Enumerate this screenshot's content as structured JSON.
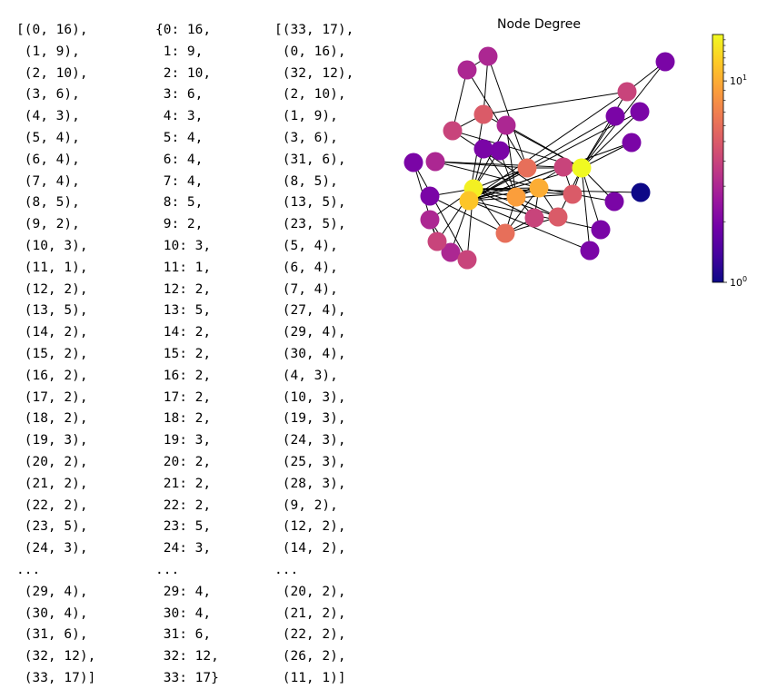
{
  "output_list_lines": [
    "[(0, 16),",
    " (1, 9),",
    " (2, 10),",
    " (3, 6),",
    " (4, 3),",
    " (5, 4),",
    " (6, 4),",
    " (7, 4),",
    " (8, 5),",
    " (9, 2),",
    " (10, 3),",
    " (11, 1),",
    " (12, 2),",
    " (13, 5),",
    " (14, 2),",
    " (15, 2),",
    " (16, 2),",
    " (17, 2),",
    " (18, 2),",
    " (19, 3),",
    " (20, 2),",
    " (21, 2),",
    " (22, 2),",
    " (23, 5),",
    " (24, 3),",
    "...",
    " (29, 4),",
    " (30, 4),",
    " (31, 6),",
    " (32, 12),",
    " (33, 17)]"
  ],
  "output_dict_lines": [
    "{0: 16,",
    " 1: 9,",
    " 2: 10,",
    " 3: 6,",
    " 4: 3,",
    " 5: 4,",
    " 6: 4,",
    " 7: 4,",
    " 8: 5,",
    " 9: 2,",
    " 10: 3,",
    " 11: 1,",
    " 12: 2,",
    " 13: 5,",
    " 14: 2,",
    " 15: 2,",
    " 16: 2,",
    " 17: 2,",
    " 18: 2,",
    " 19: 3,",
    " 20: 2,",
    " 21: 2,",
    " 22: 2,",
    " 23: 5,",
    " 24: 3,",
    "...",
    " 29: 4,",
    " 30: 4,",
    " 31: 6,",
    " 32: 12,",
    " 33: 17}"
  ],
  "output_sorted_lines": [
    "[(33, 17),",
    " (0, 16),",
    " (32, 12),",
    " (2, 10),",
    " (1, 9),",
    " (3, 6),",
    " (31, 6),",
    " (8, 5),",
    " (13, 5),",
    " (23, 5),",
    " (5, 4),",
    " (6, 4),",
    " (7, 4),",
    " (27, 4),",
    " (29, 4),",
    " (30, 4),",
    " (4, 3),",
    " (10, 3),",
    " (19, 3),",
    " (24, 3),",
    " (25, 3),",
    " (28, 3),",
    " (9, 2),",
    " (12, 2),",
    " (14, 2),",
    "...",
    " (20, 2),",
    " (21, 2),",
    " (22, 2),",
    " (26, 2),",
    " (11, 1)]"
  ],
  "figure": {
    "title": "Node Degree",
    "colorbar": {
      "colormap": "plasma",
      "scale": "log",
      "range": [
        1,
        17
      ],
      "ticks": [
        {
          "value": 1,
          "base": "10",
          "exp": "0"
        },
        {
          "value": 10,
          "base": "10",
          "exp": "1"
        }
      ]
    },
    "colormap_stops": [
      "#0d0887",
      "#46039f",
      "#7201a8",
      "#9c179e",
      "#bd3786",
      "#d8576b",
      "#ed7953",
      "#fb9f3a",
      "#fdca26",
      "#f0f921"
    ],
    "nodes": [
      {
        "id": 0,
        "degree": 16
      },
      {
        "id": 1,
        "degree": 9
      },
      {
        "id": 2,
        "degree": 10
      },
      {
        "id": 3,
        "degree": 6
      },
      {
        "id": 4,
        "degree": 3
      },
      {
        "id": 5,
        "degree": 4
      },
      {
        "id": 6,
        "degree": 4
      },
      {
        "id": 7,
        "degree": 4
      },
      {
        "id": 8,
        "degree": 5
      },
      {
        "id": 9,
        "degree": 2
      },
      {
        "id": 10,
        "degree": 3
      },
      {
        "id": 11,
        "degree": 1
      },
      {
        "id": 12,
        "degree": 2
      },
      {
        "id": 13,
        "degree": 5
      },
      {
        "id": 14,
        "degree": 2
      },
      {
        "id": 15,
        "degree": 2
      },
      {
        "id": 16,
        "degree": 2
      },
      {
        "id": 17,
        "degree": 2
      },
      {
        "id": 18,
        "degree": 2
      },
      {
        "id": 19,
        "degree": 3
      },
      {
        "id": 20,
        "degree": 2
      },
      {
        "id": 21,
        "degree": 2
      },
      {
        "id": 22,
        "degree": 2
      },
      {
        "id": 23,
        "degree": 5
      },
      {
        "id": 24,
        "degree": 3
      },
      {
        "id": 25,
        "degree": 3
      },
      {
        "id": 26,
        "degree": 2
      },
      {
        "id": 27,
        "degree": 4
      },
      {
        "id": 28,
        "degree": 3
      },
      {
        "id": 29,
        "degree": 4
      },
      {
        "id": 30,
        "degree": 4
      },
      {
        "id": 31,
        "degree": 6
      },
      {
        "id": 32,
        "degree": 12
      },
      {
        "id": 33,
        "degree": 17
      }
    ],
    "edges": [
      [
        0,
        1
      ],
      [
        0,
        2
      ],
      [
        0,
        3
      ],
      [
        0,
        4
      ],
      [
        0,
        5
      ],
      [
        0,
        6
      ],
      [
        0,
        7
      ],
      [
        0,
        8
      ],
      [
        0,
        10
      ],
      [
        0,
        11
      ],
      [
        0,
        12
      ],
      [
        0,
        13
      ],
      [
        0,
        17
      ],
      [
        0,
        19
      ],
      [
        0,
        21
      ],
      [
        0,
        31
      ],
      [
        1,
        2
      ],
      [
        1,
        3
      ],
      [
        1,
        7
      ],
      [
        1,
        13
      ],
      [
        1,
        17
      ],
      [
        1,
        19
      ],
      [
        1,
        21
      ],
      [
        1,
        30
      ],
      [
        2,
        3
      ],
      [
        2,
        7
      ],
      [
        2,
        8
      ],
      [
        2,
        9
      ],
      [
        2,
        13
      ],
      [
        2,
        27
      ],
      [
        2,
        28
      ],
      [
        2,
        32
      ],
      [
        3,
        7
      ],
      [
        3,
        12
      ],
      [
        3,
        13
      ],
      [
        4,
        6
      ],
      [
        4,
        10
      ],
      [
        5,
        6
      ],
      [
        5,
        10
      ],
      [
        5,
        16
      ],
      [
        6,
        16
      ],
      [
        8,
        30
      ],
      [
        8,
        32
      ],
      [
        8,
        33
      ],
      [
        9,
        33
      ],
      [
        13,
        33
      ],
      [
        14,
        32
      ],
      [
        14,
        33
      ],
      [
        15,
        32
      ],
      [
        15,
        33
      ],
      [
        18,
        32
      ],
      [
        18,
        33
      ],
      [
        19,
        33
      ],
      [
        20,
        32
      ],
      [
        20,
        33
      ],
      [
        22,
        32
      ],
      [
        22,
        33
      ],
      [
        23,
        25
      ],
      [
        23,
        27
      ],
      [
        23,
        29
      ],
      [
        23,
        32
      ],
      [
        23,
        33
      ],
      [
        24,
        25
      ],
      [
        24,
        27
      ],
      [
        24,
        31
      ],
      [
        25,
        31
      ],
      [
        26,
        29
      ],
      [
        26,
        33
      ],
      [
        27,
        33
      ],
      [
        28,
        31
      ],
      [
        28,
        33
      ],
      [
        29,
        32
      ],
      [
        29,
        33
      ],
      [
        30,
        32
      ],
      [
        30,
        33
      ],
      [
        31,
        32
      ],
      [
        31,
        33
      ],
      [
        32,
        33
      ]
    ]
  }
}
